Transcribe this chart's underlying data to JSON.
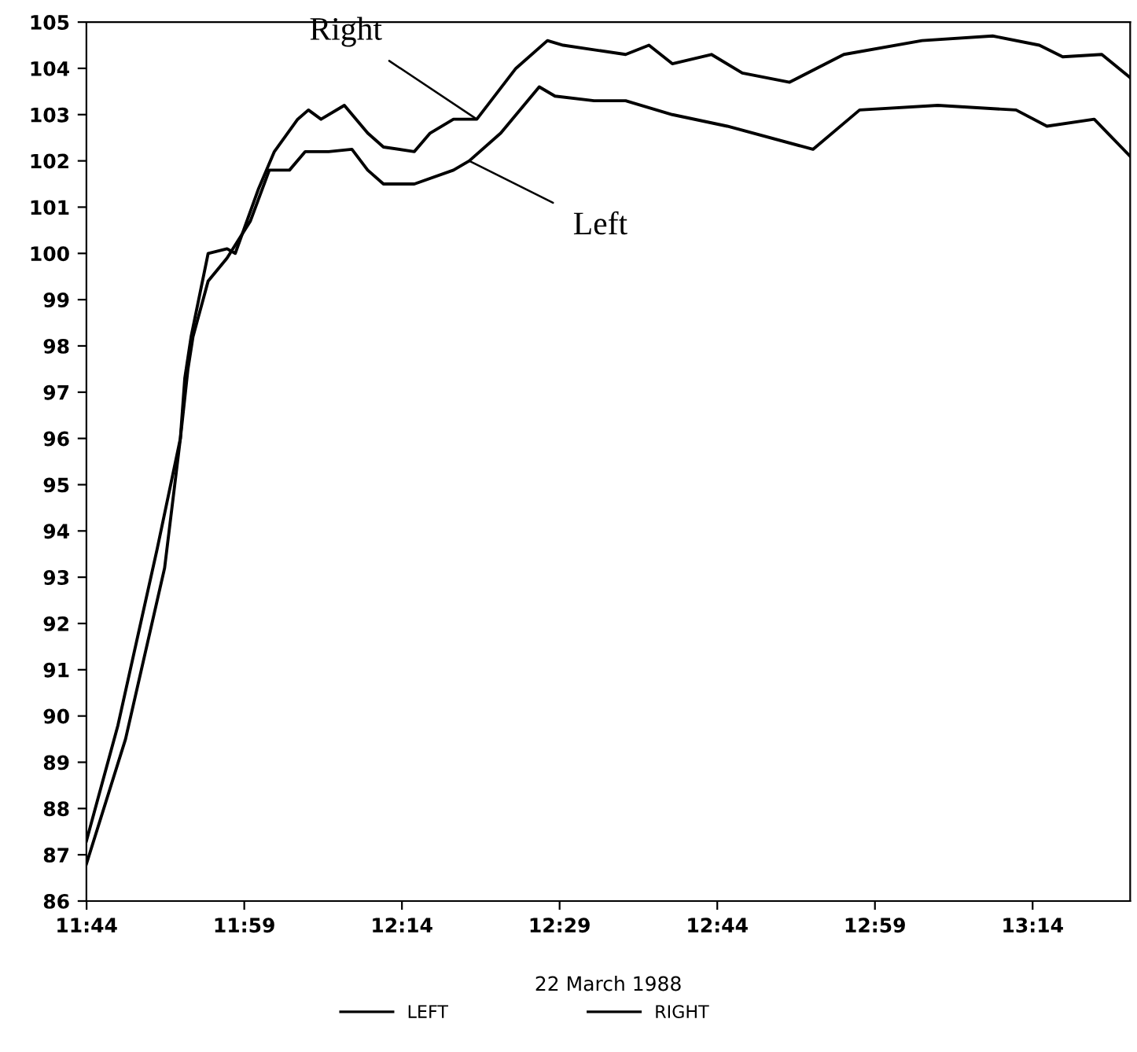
{
  "chart_data": {
    "type": "line",
    "xlabel": "22 March 1988",
    "xlim": [
      11.733,
      13.388
    ],
    "ylim": [
      86,
      105
    ],
    "xticks": [
      {
        "value": 11.7333,
        "label": "11:44"
      },
      {
        "value": 11.9833,
        "label": "11:59"
      },
      {
        "value": 12.2333,
        "label": "12:14"
      },
      {
        "value": 12.4833,
        "label": "12:29"
      },
      {
        "value": 12.7333,
        "label": "12:44"
      },
      {
        "value": 12.9833,
        "label": "12:59"
      },
      {
        "value": 13.2333,
        "label": "13:14"
      }
    ],
    "yticks": [
      86,
      87,
      88,
      89,
      90,
      91,
      92,
      93,
      94,
      95,
      96,
      97,
      98,
      99,
      100,
      101,
      102,
      103,
      104,
      105
    ],
    "grid": false,
    "legend": "bottom",
    "marker": "none",
    "line_style": "solid",
    "series": [
      {
        "name": "LEFT",
        "color": "#000000",
        "x": [
          11.733,
          11.795,
          11.857,
          11.882,
          11.894,
          11.902,
          11.926,
          11.956,
          11.993,
          12.023,
          12.055,
          12.08,
          12.117,
          12.154,
          12.179,
          12.204,
          12.253,
          12.315,
          12.34,
          12.39,
          12.451,
          12.476,
          12.538,
          12.588,
          12.662,
          12.749,
          12.885,
          12.959,
          13.083,
          13.207,
          13.256,
          13.331,
          13.388
        ],
        "values": [
          86.8,
          89.5,
          93.2,
          96.0,
          97.5,
          98.2,
          99.4,
          99.9,
          100.7,
          101.8,
          101.8,
          102.2,
          102.2,
          102.25,
          101.8,
          101.5,
          101.5,
          101.8,
          102.0,
          102.6,
          103.6,
          103.4,
          103.3,
          103.3,
          103.0,
          102.75,
          102.25,
          103.1,
          103.2,
          103.1,
          102.75,
          102.9,
          102.1
        ]
      },
      {
        "name": "RIGHT",
        "color": "#000000",
        "x": [
          11.733,
          11.783,
          11.845,
          11.882,
          11.889,
          11.899,
          11.914,
          11.926,
          11.956,
          11.969,
          12.006,
          12.031,
          12.068,
          12.085,
          12.105,
          12.142,
          12.179,
          12.204,
          12.253,
          12.278,
          12.315,
          12.352,
          12.414,
          12.464,
          12.489,
          12.588,
          12.625,
          12.662,
          12.724,
          12.773,
          12.848,
          12.934,
          13.058,
          13.17,
          13.244,
          13.281,
          13.343,
          13.388
        ],
        "values": [
          87.3,
          89.8,
          93.6,
          96.0,
          97.3,
          98.2,
          99.2,
          100.0,
          100.1,
          100.0,
          101.4,
          102.2,
          102.9,
          103.1,
          102.9,
          103.2,
          102.6,
          102.3,
          102.2,
          102.6,
          102.9,
          102.9,
          104.0,
          104.6,
          104.5,
          104.3,
          104.5,
          104.1,
          104.3,
          103.9,
          103.7,
          104.3,
          104.6,
          104.7,
          104.5,
          104.25,
          104.3,
          103.8
        ]
      }
    ],
    "annotations": [
      {
        "text": "Right",
        "x": 12.352,
        "y": 102.9
      },
      {
        "text": "Left",
        "x": 12.34,
        "y": 102.0
      }
    ]
  }
}
